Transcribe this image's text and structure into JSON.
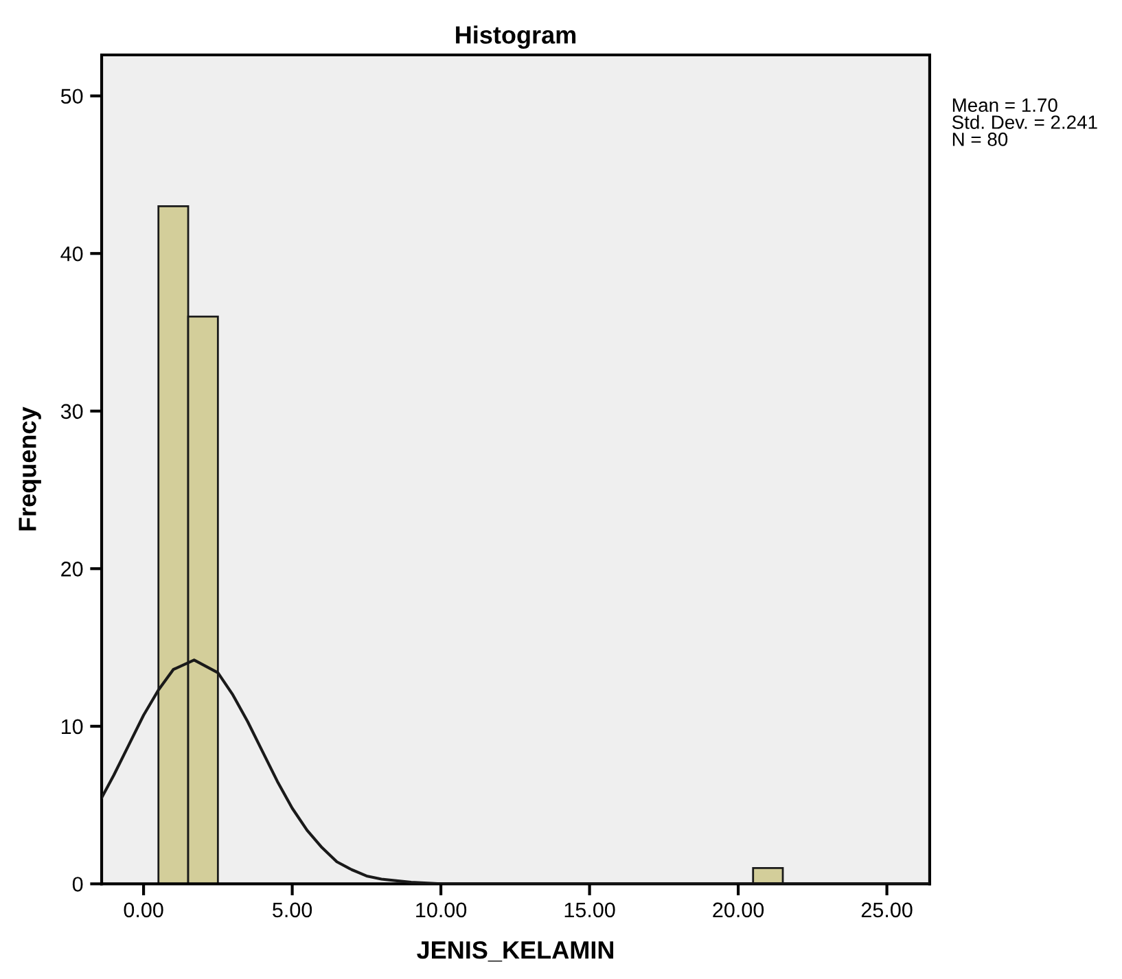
{
  "chart_data": {
    "type": "histogram",
    "title": "Histogram",
    "xlabel": "JENIS_KELAMIN",
    "ylabel": "Frequency",
    "xlim": [
      -1.41,
      26.44
    ],
    "ylim": [
      0,
      52.6
    ],
    "xticks": [
      {
        "value": 0,
        "label": "0.00"
      },
      {
        "value": 5,
        "label": "5.00"
      },
      {
        "value": 10,
        "label": "10.00"
      },
      {
        "value": 15,
        "label": "15.00"
      },
      {
        "value": 20,
        "label": "20.00"
      },
      {
        "value": 25,
        "label": "25.00"
      }
    ],
    "yticks": [
      0,
      10,
      20,
      30,
      40,
      50
    ],
    "grid": false,
    "legend": false,
    "series": [
      {
        "color": "#d3ce9a",
        "bins": [
          0.5,
          1.5,
          2.5,
          3.5,
          4.5,
          5.5,
          6.5,
          7.5,
          8.5,
          9.5,
          10.5,
          11.5,
          12.5,
          13.5,
          14.5,
          15.5,
          16.5,
          17.5,
          18.5,
          19.5,
          20.5,
          21.5
        ],
        "values": [
          43,
          36,
          0,
          0,
          0,
          0,
          0,
          0,
          0,
          0,
          0,
          0,
          0,
          0,
          0,
          0,
          0,
          0,
          0,
          0,
          1
        ]
      },
      {
        "type": "line",
        "color": "#1a1a1a",
        "x": [
          -1.4,
          -1,
          -0.5,
          0,
          0.5,
          1,
          1.7,
          2.5,
          3,
          3.5,
          4,
          4.5,
          5,
          5.5,
          6,
          6.5,
          7,
          7.5,
          8,
          9,
          10,
          12,
          15,
          20,
          26.4
        ],
        "values": [
          5.5,
          6.9,
          8.8,
          10.7,
          12.3,
          13.6,
          14.2,
          13.4,
          12,
          10.3,
          8.4,
          6.5,
          4.8,
          3.4,
          2.3,
          1.4,
          0.9,
          0.5,
          0.3,
          0.1,
          0,
          0,
          0,
          0,
          0
        ]
      }
    ],
    "annotations": [
      "Mean = 1.70",
      "Std. Dev. = 2.241",
      "N = 80"
    ]
  }
}
